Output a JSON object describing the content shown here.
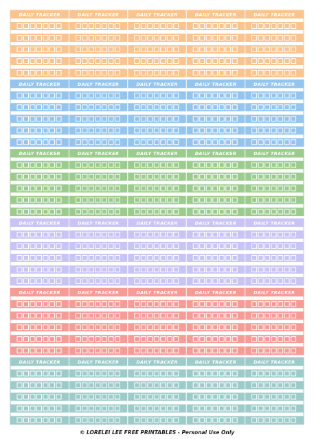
{
  "blocks": [
    {
      "color": "#f9c490",
      "headers": [
        "DAILY TRACKER",
        "DAILY TRACKER",
        "DAILY TRACKER",
        "DAILY TRACKER",
        "DAILY TRACKER"
      ]
    },
    {
      "color": "#93c5ef",
      "headers": [
        "DAILY TRACKER",
        "DAILY TRACKER",
        "DAILY TRACKER",
        "DAILY TRACKER",
        "DAILY TRACKER"
      ]
    },
    {
      "color": "#9ccb8e",
      "headers": [
        "DAILY TRACKER",
        "DAILY TRACKER",
        "DAILY TRACKER",
        "DAILY TRACKER",
        "DAILY TRACKER"
      ]
    },
    {
      "color": "#c8c4f6",
      "headers": [
        "DAILY TRACKER",
        "DAILY TRACKER",
        "DAILY TRACKER",
        "DAILY TRACKER",
        "DAILY TRACKER"
      ]
    },
    {
      "color": "#f69c96",
      "headers": [
        "DAILY TRACKER",
        "DAILY TRACKER",
        "DAILY TRACKER",
        "DAILY TRACKER",
        "DAILY TRACKER"
      ]
    },
    {
      "color": "#9dcbca",
      "headers": [
        "DAILY TRACKER",
        "DAILY TRACKER",
        "DAILY TRACKER",
        "DAILY TRACKER",
        "DAILY TRACKER"
      ]
    }
  ],
  "footer": "© LORELEI LEE FREE PRINTABLES - Personal Use Only"
}
